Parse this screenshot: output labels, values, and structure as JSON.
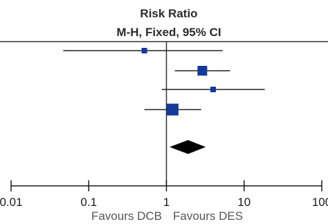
{
  "chart_data": {
    "type": "forest",
    "title": "Risk Ratio",
    "subtitle": "M-H, Fixed, 95% CI",
    "scale": "log",
    "xlim": [
      0.01,
      100
    ],
    "reference_line": 1,
    "x_ticks": [
      {
        "value": 0.01,
        "label": "0.01"
      },
      {
        "value": 0.1,
        "label": "0.1"
      },
      {
        "value": 1,
        "label": "1"
      },
      {
        "value": 10,
        "label": "10"
      },
      {
        "value": 100,
        "label": "100"
      }
    ],
    "studies": [
      {
        "rr": 0.52,
        "ci_low": 0.047,
        "ci_high": 5.3,
        "weight": 1
      },
      {
        "rr": 2.9,
        "ci_low": 1.28,
        "ci_high": 6.6,
        "weight": 3
      },
      {
        "rr": 4.0,
        "ci_low": 0.87,
        "ci_high": 18.5,
        "weight": 1
      },
      {
        "rr": 1.2,
        "ci_low": 0.52,
        "ci_high": 2.8,
        "weight": 4
      }
    ],
    "pooled": {
      "rr": 1.9,
      "ci_low": 1.1,
      "ci_high": 3.2
    },
    "favours_left": "Favours DCB",
    "favours_right": "Favours DES",
    "colors": {
      "square": "#13399b",
      "line": "#222222",
      "diamond": "#000000",
      "reference": "#333333"
    }
  }
}
